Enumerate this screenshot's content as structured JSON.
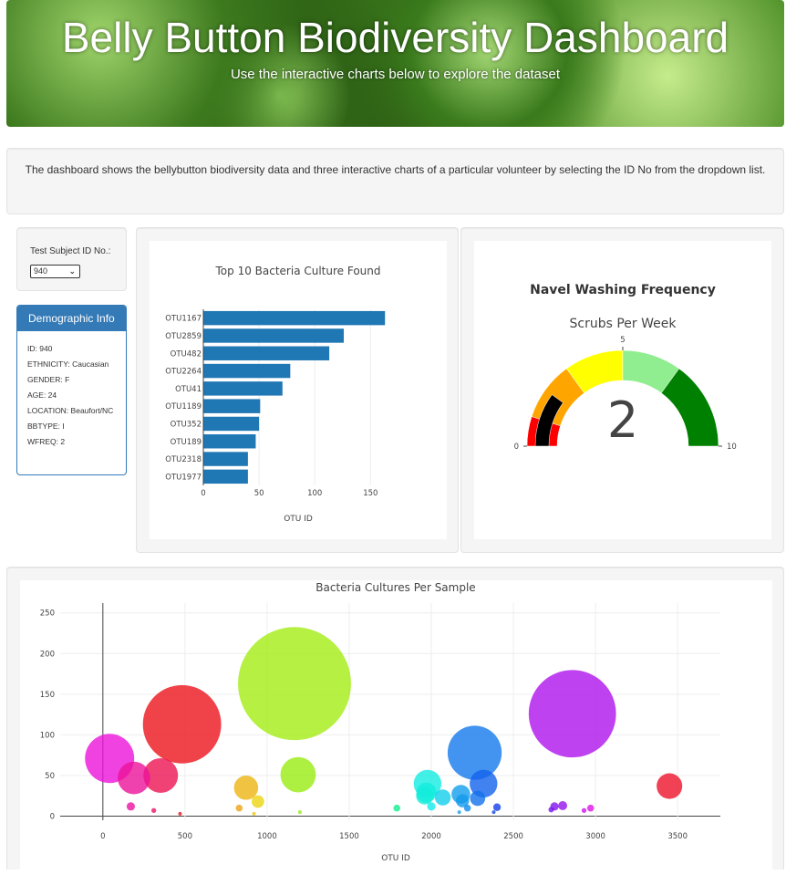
{
  "header": {
    "title": "Belly Button Biodiversity Dashboard",
    "subtitle": "Use the interactive charts below to explore the dataset"
  },
  "description": "The dashboard shows the bellybutton biodiversity data and three interactive charts of a particular volunteer by selecting the ID No from the dropdown list.",
  "selector": {
    "label": "Test Subject ID No.:",
    "value": "940"
  },
  "demographics": {
    "title": "Demographic Info",
    "rows": [
      "ID: 940",
      "ETHNICITY: Caucasian",
      "GENDER: F",
      "AGE: 24",
      "LOCATION: Beaufort/NC",
      "BBTYPE: I",
      "WFREQ: 2"
    ]
  },
  "colors": {
    "primary": "#337ab7",
    "bar": "#1f77b4"
  },
  "chart_data": [
    {
      "type": "bar",
      "orientation": "horizontal",
      "title": "Top 10 Bacteria Culture Found",
      "xlabel": "OTU ID",
      "ylabel": "",
      "categories": [
        "OTU1167",
        "OTU2859",
        "OTU482",
        "OTU2264",
        "OTU41",
        "OTU1189",
        "OTU352",
        "OTU189",
        "OTU2318",
        "OTU1977"
      ],
      "values": [
        163,
        126,
        113,
        78,
        71,
        51,
        50,
        47,
        40,
        40
      ],
      "xticks": [
        0,
        50,
        100,
        150
      ],
      "xlim": [
        0,
        171
      ],
      "grid": true
    },
    {
      "type": "gauge",
      "title": "Navel Washing Frequency",
      "subtitle": "Scrubs Per Week",
      "value": 2,
      "range": [
        0,
        10
      ],
      "tick_labels": [
        "0",
        "5",
        "10"
      ],
      "bands": [
        {
          "from": 0,
          "to": 1,
          "color": "#ff0000"
        },
        {
          "from": 1,
          "to": 3,
          "color": "#ffa500"
        },
        {
          "from": 3,
          "to": 5,
          "color": "#ffff00"
        },
        {
          "from": 5,
          "to": 7,
          "color": "#90ee90"
        },
        {
          "from": 7,
          "to": 10,
          "color": "#008000"
        }
      ],
      "bar_color": "#000000"
    },
    {
      "type": "scatter",
      "subtype": "bubble",
      "title": "Bacteria Cultures Per Sample",
      "xlabel": "OTU ID",
      "ylabel": "",
      "xticks": [
        0,
        500,
        1000,
        1500,
        2000,
        2500,
        3000,
        3500
      ],
      "yticks": [
        0,
        50,
        100,
        150,
        200,
        250
      ],
      "xlim": [
        -260,
        3760
      ],
      "ylim": [
        -5,
        262
      ],
      "grid": true,
      "points": [
        {
          "x": 41,
          "y": 71
        },
        {
          "x": 189,
          "y": 47
        },
        {
          "x": 352,
          "y": 50
        },
        {
          "x": 482,
          "y": 113
        },
        {
          "x": 1167,
          "y": 163
        },
        {
          "x": 1189,
          "y": 51
        },
        {
          "x": 2264,
          "y": 78
        },
        {
          "x": 2859,
          "y": 126
        },
        {
          "x": 2318,
          "y": 40
        },
        {
          "x": 1977,
          "y": 40
        },
        {
          "x": 3450,
          "y": 37
        },
        {
          "x": 872,
          "y": 35
        },
        {
          "x": 944,
          "y": 18
        },
        {
          "x": 1970,
          "y": 29
        },
        {
          "x": 1960,
          "y": 25
        },
        {
          "x": 2070,
          "y": 23
        },
        {
          "x": 2180,
          "y": 27
        },
        {
          "x": 2190,
          "y": 19
        },
        {
          "x": 2282,
          "y": 22
        },
        {
          "x": 2000,
          "y": 12
        },
        {
          "x": 2220,
          "y": 10
        },
        {
          "x": 1790,
          "y": 10
        },
        {
          "x": 2400,
          "y": 11
        },
        {
          "x": 2750,
          "y": 12
        },
        {
          "x": 2800,
          "y": 13
        },
        {
          "x": 2970,
          "y": 10
        },
        {
          "x": 2730,
          "y": 8
        },
        {
          "x": 2930,
          "y": 7
        },
        {
          "x": 170,
          "y": 12
        },
        {
          "x": 310,
          "y": 7
        },
        {
          "x": 830,
          "y": 10
        },
        {
          "x": 1200,
          "y": 5
        },
        {
          "x": 2170,
          "y": 5
        },
        {
          "x": 2380,
          "y": 5
        },
        {
          "x": 470,
          "y": 3
        },
        {
          "x": 920,
          "y": 3
        }
      ],
      "sizes": [
        71,
        47,
        50,
        113,
        163,
        51,
        78,
        126,
        40,
        40,
        37,
        35,
        18,
        29,
        25,
        23,
        27,
        19,
        22,
        12,
        10,
        10,
        11,
        12,
        13,
        10,
        8,
        7,
        12,
        7,
        10,
        5,
        5,
        5,
        3,
        3
      ]
    }
  ]
}
